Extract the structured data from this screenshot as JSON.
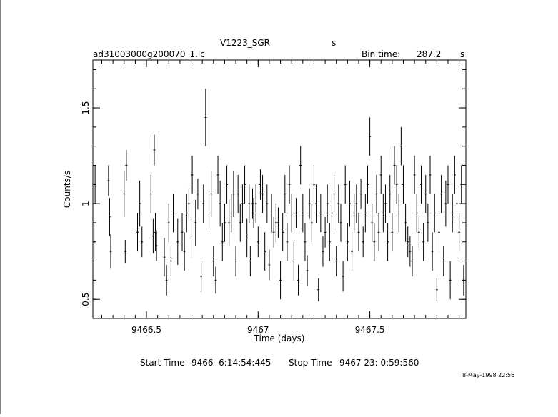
{
  "header": {
    "object": "V1223_SGR",
    "object_unit": "s",
    "filename": "ad31003000g200070_1.lc",
    "bin_label": "Bin time:",
    "bin_value": "287.2",
    "bin_unit": "s"
  },
  "footer": {
    "start_label": "Start Time",
    "start_value": "9466  6:14:54:445",
    "stop_label": "Stop Time",
    "stop_value": "9467 23: 0:59:560",
    "datestamp": "8-May-1998 22:56"
  },
  "chart_data": {
    "type": "scatter",
    "xlabel": "Time (days)",
    "ylabel": "Counts/s",
    "xlim": [
      9466.26,
      9467.93
    ],
    "ylim": [
      0.4,
      1.75
    ],
    "xticks": [
      9466.5,
      9467,
      9467.5
    ],
    "xtick_labels": [
      "9466.5",
      "9467",
      "9467.5"
    ],
    "yticks": [
      0.5,
      1,
      1.5
    ],
    "ytick_labels": [
      "0.5",
      "1",
      "1.5"
    ],
    "grid": false,
    "error_bars": true,
    "series": [
      {
        "points": [
          [
            9466.265,
            0.8,
            0.1
          ],
          [
            9466.27,
            1.1,
            0.1
          ],
          [
            9466.33,
            1.12,
            0.08
          ],
          [
            9466.335,
            0.93,
            0.1
          ],
          [
            9466.34,
            0.75,
            0.09
          ],
          [
            9466.4,
            1.05,
            0.12
          ],
          [
            9466.405,
            0.75,
            0.06
          ],
          [
            9466.41,
            1.2,
            0.08
          ],
          [
            9466.46,
            0.85,
            0.1
          ],
          [
            9466.47,
            1.0,
            0.12
          ],
          [
            9466.48,
            0.8,
            0.08
          ],
          [
            9466.52,
            1.05,
            0.1
          ],
          [
            9466.53,
            0.83,
            0.09
          ],
          [
            9466.535,
            1.28,
            0.08
          ],
          [
            9466.54,
            0.85,
            0.1
          ],
          [
            9466.545,
            0.78,
            0.08
          ],
          [
            9466.58,
            0.72,
            0.1
          ],
          [
            9466.59,
            0.6,
            0.08
          ],
          [
            9466.6,
            0.9,
            0.1
          ],
          [
            9466.61,
            0.7,
            0.08
          ],
          [
            9466.62,
            0.95,
            0.1
          ],
          [
            9466.64,
            0.8,
            0.12
          ],
          [
            9466.66,
            0.85,
            0.1
          ],
          [
            9466.67,
            0.75,
            0.1
          ],
          [
            9466.68,
            0.95,
            0.1
          ],
          [
            9466.69,
            1.0,
            0.08
          ],
          [
            9466.7,
            0.82,
            0.1
          ],
          [
            9466.705,
            1.15,
            0.1
          ],
          [
            9466.72,
            0.9,
            0.12
          ],
          [
            9466.73,
            1.05,
            0.08
          ],
          [
            9466.745,
            0.62,
            0.08
          ],
          [
            9466.755,
            1.0,
            0.1
          ],
          [
            9466.765,
            1.45,
            0.15
          ],
          [
            9466.78,
            0.95,
            0.1
          ],
          [
            9466.79,
            1.05,
            0.12
          ],
          [
            9466.8,
            0.7,
            0.08
          ],
          [
            9466.81,
            0.6,
            0.07
          ],
          [
            9466.82,
            1.15,
            0.1
          ],
          [
            9466.83,
            1.0,
            0.12
          ],
          [
            9466.84,
            0.8,
            0.1
          ],
          [
            9466.85,
            0.9,
            0.1
          ],
          [
            9466.86,
            1.1,
            0.1
          ],
          [
            9466.87,
            0.9,
            0.12
          ],
          [
            9466.88,
            0.95,
            0.1
          ],
          [
            9466.89,
            1.05,
            0.12
          ],
          [
            9466.9,
            0.7,
            0.08
          ],
          [
            9466.91,
            1.05,
            0.1
          ],
          [
            9466.92,
            0.9,
            0.1
          ],
          [
            9466.93,
            1.0,
            0.1
          ],
          [
            9466.94,
            1.1,
            0.1
          ],
          [
            9466.95,
            0.82,
            0.1
          ],
          [
            9466.96,
            1.0,
            0.1
          ],
          [
            9466.965,
            0.7,
            0.08
          ],
          [
            9466.975,
            1.0,
            0.08
          ],
          [
            9466.98,
            0.95,
            0.08
          ],
          [
            9466.99,
            1.0,
            0.1
          ],
          [
            9467.0,
            0.8,
            0.08
          ],
          [
            9467.01,
            1.1,
            0.08
          ],
          [
            9467.02,
            1.05,
            0.1
          ],
          [
            9467.03,
            0.75,
            0.1
          ],
          [
            9467.04,
            1.0,
            0.1
          ],
          [
            9467.05,
            0.68,
            0.08
          ],
          [
            9467.06,
            0.95,
            0.1
          ],
          [
            9467.07,
            0.85,
            0.08
          ],
          [
            9467.08,
            0.9,
            0.1
          ],
          [
            9467.09,
            0.9,
            0.08
          ],
          [
            9467.1,
            0.6,
            0.1
          ],
          [
            9467.11,
            0.85,
            0.1
          ],
          [
            9467.12,
            1.05,
            0.1
          ],
          [
            9467.13,
            0.8,
            0.1
          ],
          [
            9467.14,
            1.1,
            0.1
          ],
          [
            9467.15,
            0.95,
            0.1
          ],
          [
            9467.16,
            0.7,
            0.1
          ],
          [
            9467.17,
            0.95,
            0.08
          ],
          [
            9467.18,
            0.6,
            0.08
          ],
          [
            9467.19,
            1.2,
            0.1
          ],
          [
            9467.2,
            0.95,
            0.1
          ],
          [
            9467.21,
            0.8,
            0.1
          ],
          [
            9467.22,
            0.65,
            0.08
          ],
          [
            9467.23,
            1.0,
            0.08
          ],
          [
            9467.24,
            0.9,
            0.1
          ],
          [
            9467.25,
            1.1,
            0.1
          ],
          [
            9467.26,
            1.0,
            0.1
          ],
          [
            9467.27,
            0.55,
            0.06
          ],
          [
            9467.28,
            0.95,
            0.1
          ],
          [
            9467.29,
            0.75,
            0.08
          ],
          [
            9467.3,
            0.85,
            0.08
          ],
          [
            9467.31,
            1.0,
            0.1
          ],
          [
            9467.32,
            0.8,
            0.1
          ],
          [
            9467.33,
            0.95,
            0.1
          ],
          [
            9467.34,
            1.05,
            0.1
          ],
          [
            9467.35,
            0.7,
            0.08
          ],
          [
            9467.36,
            1.0,
            0.1
          ],
          [
            9467.37,
            0.9,
            0.1
          ],
          [
            9467.38,
            0.62,
            0.08
          ],
          [
            9467.39,
            1.1,
            0.1
          ],
          [
            9467.4,
            0.8,
            0.1
          ],
          [
            9467.41,
            1.0,
            0.12
          ],
          [
            9467.42,
            0.75,
            0.1
          ],
          [
            9467.43,
            0.95,
            0.1
          ],
          [
            9467.44,
            1.0,
            0.1
          ],
          [
            9467.45,
            0.85,
            0.1
          ],
          [
            9467.46,
            1.05,
            0.08
          ],
          [
            9467.47,
            0.8,
            0.08
          ],
          [
            9467.48,
            0.95,
            0.1
          ],
          [
            9467.49,
            1.1,
            0.1
          ],
          [
            9467.5,
            1.35,
            0.1
          ],
          [
            9467.51,
            0.9,
            0.1
          ],
          [
            9467.52,
            0.8,
            0.1
          ],
          [
            9467.53,
            1.05,
            0.1
          ],
          [
            9467.54,
            0.85,
            0.1
          ],
          [
            9467.55,
            1.15,
            0.1
          ],
          [
            9467.56,
            0.95,
            0.1
          ],
          [
            9467.57,
            1.0,
            0.1
          ],
          [
            9467.58,
            0.8,
            0.1
          ],
          [
            9467.59,
            1.05,
            0.1
          ],
          [
            9467.6,
            0.85,
            0.1
          ],
          [
            9467.61,
            1.2,
            0.1
          ],
          [
            9467.62,
            1.1,
            0.1
          ],
          [
            9467.63,
            0.95,
            0.1
          ],
          [
            9467.64,
            1.3,
            0.1
          ],
          [
            9467.65,
            1.1,
            0.1
          ],
          [
            9467.66,
            0.9,
            0.1
          ],
          [
            9467.67,
            0.8,
            0.08
          ],
          [
            9467.68,
            0.75,
            0.08
          ],
          [
            9467.69,
            0.7,
            0.08
          ],
          [
            9467.7,
            1.15,
            0.1
          ],
          [
            9467.71,
            0.95,
            0.1
          ],
          [
            9467.72,
            0.85,
            0.08
          ],
          [
            9467.73,
            1.1,
            0.1
          ],
          [
            9467.74,
            0.8,
            0.1
          ],
          [
            9467.75,
            1.05,
            0.1
          ],
          [
            9467.76,
            0.9,
            0.1
          ],
          [
            9467.77,
            1.15,
            0.1
          ],
          [
            9467.78,
            0.75,
            0.1
          ],
          [
            9467.79,
            0.95,
            0.1
          ],
          [
            9467.8,
            0.55,
            0.06
          ],
          [
            9467.81,
            0.85,
            0.1
          ],
          [
            9467.82,
            1.05,
            0.1
          ],
          [
            9467.83,
            0.7,
            0.08
          ],
          [
            9467.84,
            1.0,
            0.12
          ],
          [
            9467.85,
            1.1,
            0.1
          ],
          [
            9467.86,
            0.6,
            0.1
          ],
          [
            9467.87,
            0.95,
            0.1
          ],
          [
            9467.88,
            1.15,
            0.1
          ],
          [
            9467.89,
            1.0,
            0.08
          ],
          [
            9467.9,
            0.85,
            0.1
          ],
          [
            9467.91,
            1.1,
            0.1
          ],
          [
            9467.92,
            0.6,
            0.08
          ]
        ]
      }
    ]
  }
}
